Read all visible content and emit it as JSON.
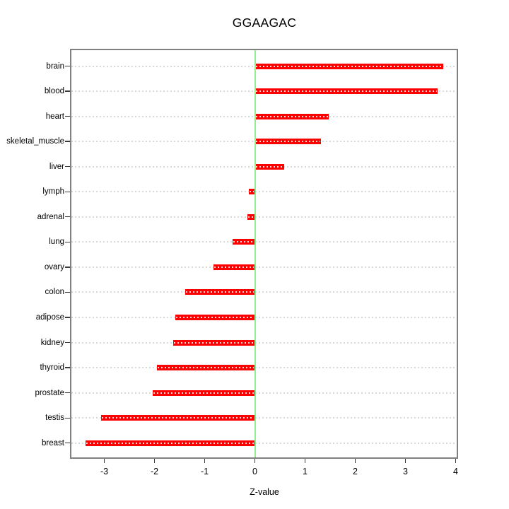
{
  "chart_data": {
    "type": "bar",
    "orientation": "horizontal",
    "title": "GGAAGAC",
    "xlabel": "Z-value",
    "ylabel": "",
    "categories": [
      "brain",
      "blood",
      "heart",
      "skeletal_muscle",
      "liver",
      "lymph",
      "adrenal",
      "lung",
      "ovary",
      "colon",
      "adipose",
      "kidney",
      "thyroid",
      "prostate",
      "testis",
      "breast"
    ],
    "values": [
      3.76,
      3.64,
      1.47,
      1.31,
      0.59,
      -0.12,
      -0.15,
      -0.44,
      -0.82,
      -1.39,
      -1.58,
      -1.63,
      -1.95,
      -2.04,
      -3.07,
      -3.38
    ],
    "x_ticks": [
      -3,
      -2,
      -1,
      0,
      1,
      2,
      3,
      4
    ],
    "xlim": [
      -3.67,
      4.03
    ],
    "zero_reference_line": 0,
    "grid": true,
    "legend": false,
    "colors": {
      "bar": "#ff0000",
      "bar_grid_dash": "rgba(255,255,255,0.85)",
      "zero_line": "#90ee90",
      "grid": "#d8d8d8",
      "frame": "#808080",
      "tick": "#3a3a3a",
      "text": "#000000",
      "background": "#ffffff"
    }
  }
}
